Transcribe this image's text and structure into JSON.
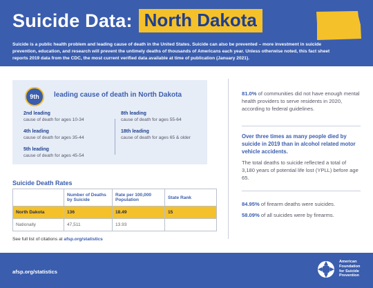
{
  "header": {
    "title_prefix": "Suicide Data:",
    "state_name": "North Dakota",
    "intro": "Suicide is a public health problem and leading cause of death in the United States. Suicide can also be prevented – more investment in suicide prevention, education, and research will prevent the untimely deaths of thousands of Americans each year. Unless otherwise noted, this fact sheet reports 2019 data from the CDC, the most current verified data available at time of publication (January 2021).",
    "state_color": "#f5c12a"
  },
  "rank": {
    "badge": "9th",
    "title": "leading cause of death in North Dakota",
    "items": [
      {
        "label": "2nd leading",
        "sub": "cause of death for ages 10-34"
      },
      {
        "label": "4th leading",
        "sub": "cause of death for ages 35-44"
      },
      {
        "label": "5th leading",
        "sub": "cause of death for ages 45-54"
      },
      {
        "label": "8th leading",
        "sub": "cause of death for ages 55-64"
      },
      {
        "label": "18th leading",
        "sub": "cause of death for ages 65 & older"
      }
    ]
  },
  "rates": {
    "title": "Suicide Death Rates",
    "headers": [
      "",
      "Number of Deaths by Suicide",
      "Rate per 100,000 Population",
      "State Rank"
    ],
    "rows": [
      [
        "North Dakota",
        "136",
        "18.49",
        "15"
      ],
      [
        "Nationally",
        "47,511",
        "13.93",
        ""
      ]
    ]
  },
  "citation": {
    "prefix": "See full list of citations at",
    "link": "afsp.org/statistics"
  },
  "facts": {
    "f1_pct": "81.0%",
    "f1_text": " of communities did not have enough mental health providers to serve residents in 2020, according to federal guidelines.",
    "f2": "Over three times as many people died by suicide in 2019 than in alcohol related motor vehicle accidents.",
    "f3": "The total deaths to suicide reflected a total of 3,180 years of potential life lost (YPLL) before age 65.",
    "f4_pct": "84.95%",
    "f4_text": " of firearm deaths were suicides.",
    "f5_pct": "58.09%",
    "f5_text": " of all suicides were by firearms."
  },
  "footer": {
    "url": "afsp.org/statistics",
    "org_line1": "American",
    "org_line2": "Foundation",
    "org_line3": "for Suicide",
    "org_line4": "Prevention",
    "icon": "lifebuoy-icon"
  },
  "colors": {
    "brand_blue": "#3a5dae",
    "accent_yellow": "#f5c12a"
  }
}
